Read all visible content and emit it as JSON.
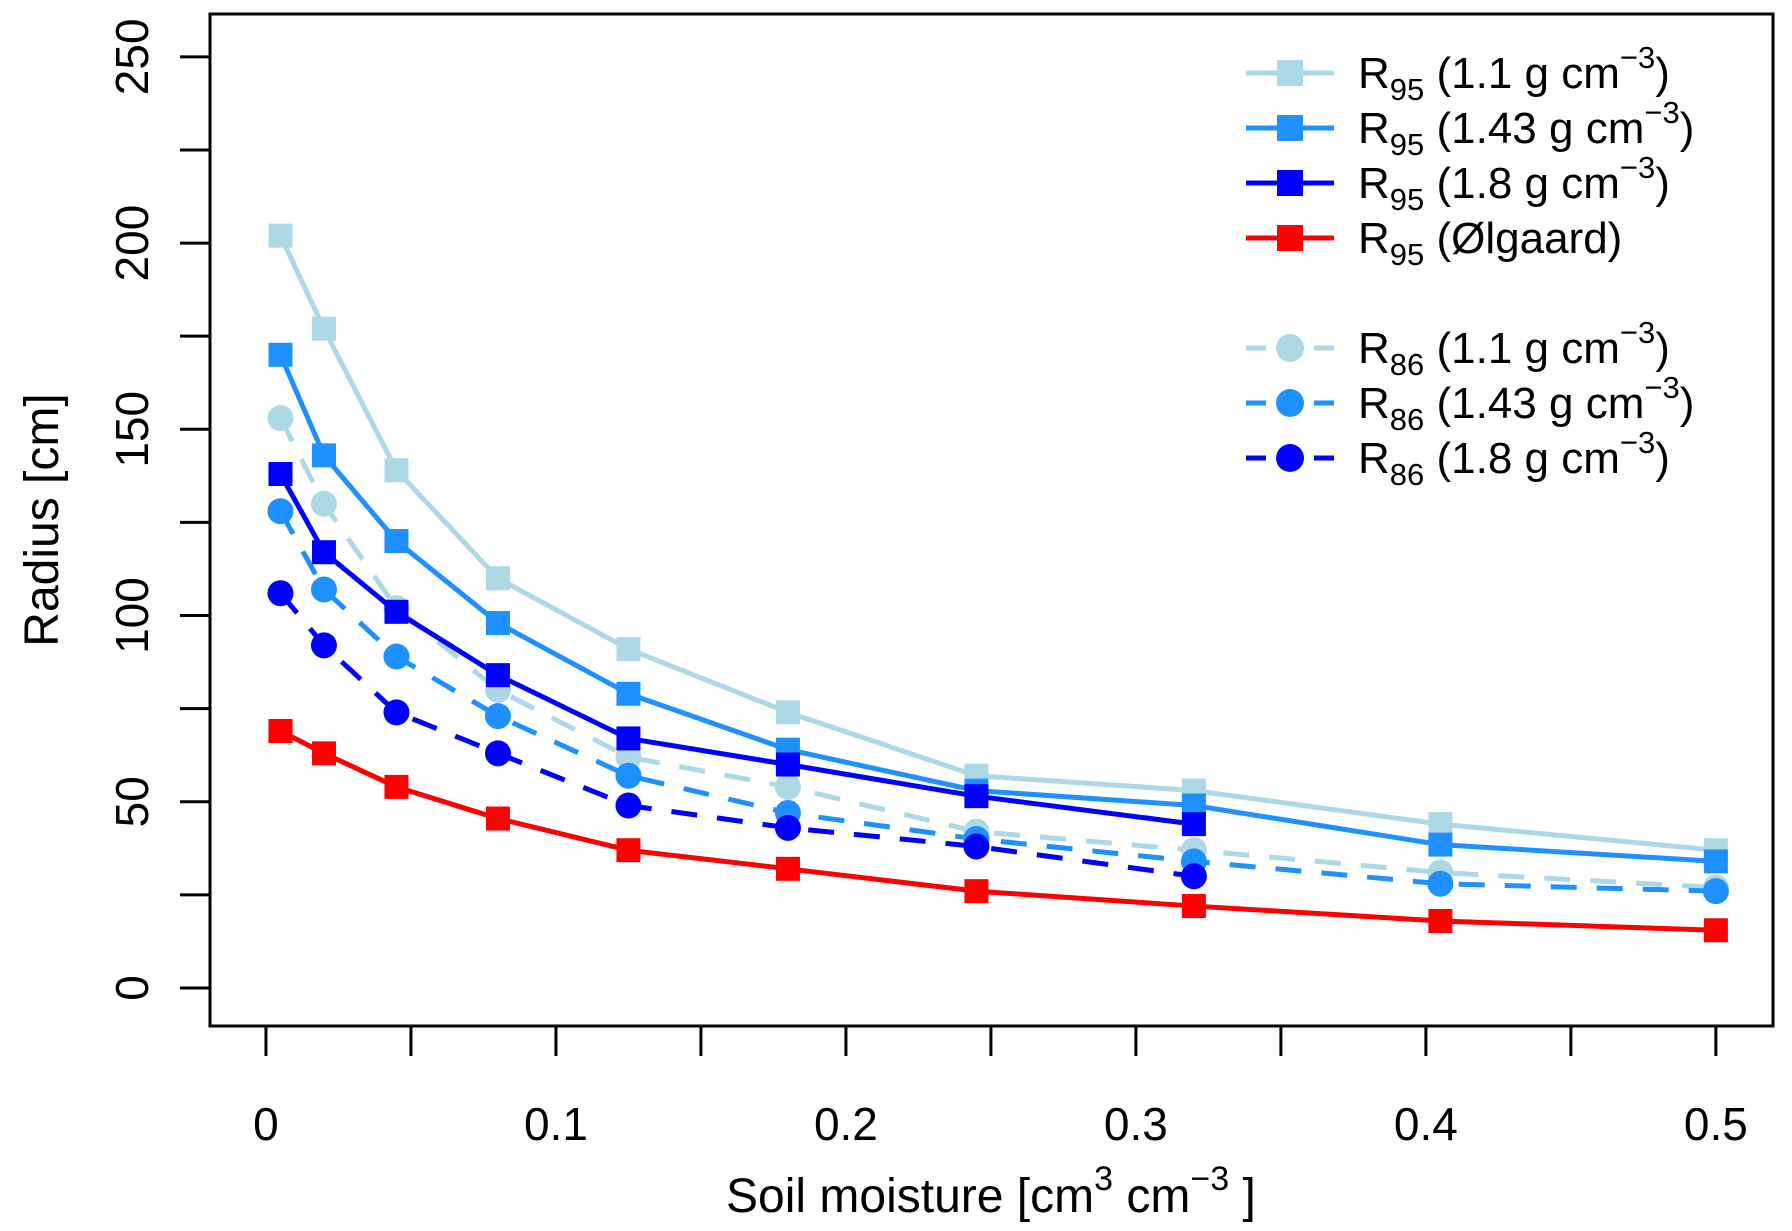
{
  "figure": {
    "background": "#ffffff",
    "axis_color": "#000000"
  },
  "chart_data": {
    "type": "line",
    "title": "",
    "xlabel": "Soil moisture [cm3 cm−3 ]",
    "xlabel_parts": [
      {
        "t": "Soil moisture [cm"
      },
      {
        "t": "3",
        "sup": true
      },
      {
        "t": " cm"
      },
      {
        "t": "−3",
        "sup": true
      },
      {
        "t": " ]"
      }
    ],
    "ylabel": "Radius [cm]",
    "xlim": [
      -0.0193,
      0.5197
    ],
    "ylim": [
      -10.2,
      261.5
    ],
    "grid": false,
    "legend_position": "top-right-inside",
    "x_ticks": [
      {
        "v": 0.0,
        "label": "0"
      },
      {
        "v": 0.05,
        "label": ""
      },
      {
        "v": 0.1,
        "label": "0.1"
      },
      {
        "v": 0.15,
        "label": ""
      },
      {
        "v": 0.2,
        "label": "0.2"
      },
      {
        "v": 0.25,
        "label": ""
      },
      {
        "v": 0.3,
        "label": "0.3"
      },
      {
        "v": 0.35,
        "label": ""
      },
      {
        "v": 0.4,
        "label": "0.4"
      },
      {
        "v": 0.45,
        "label": ""
      },
      {
        "v": 0.5,
        "label": "0.5"
      }
    ],
    "y_ticks": [
      {
        "v": 0,
        "label": "0"
      },
      {
        "v": 25,
        "label": ""
      },
      {
        "v": 50,
        "label": "50"
      },
      {
        "v": 75,
        "label": ""
      },
      {
        "v": 100,
        "label": "100"
      },
      {
        "v": 125,
        "label": ""
      },
      {
        "v": 150,
        "label": "150"
      },
      {
        "v": 175,
        "label": ""
      },
      {
        "v": 200,
        "label": "200"
      },
      {
        "v": 225,
        "label": ""
      },
      {
        "v": 250,
        "label": "250"
      }
    ],
    "x": [
      0.005,
      0.02,
      0.045,
      0.08,
      0.125,
      0.18,
      0.245,
      0.32,
      0.405,
      0.5
    ],
    "series": [
      {
        "id": "R95-1.1",
        "label": "R95 (1.1 g cm−3)",
        "label_parts": [
          {
            "t": "R"
          },
          {
            "t": "95",
            "sub": true
          },
          {
            "t": " (1.1 g cm"
          },
          {
            "t": "−3",
            "sup": true
          },
          {
            "t": ")"
          }
        ],
        "color": "#ADD8E6",
        "marker": "square",
        "line": "solid",
        "draw_order": 3,
        "values": [
          202,
          177,
          139,
          110,
          91,
          74,
          57,
          53,
          44,
          37
        ]
      },
      {
        "id": "R95-1.43",
        "label": "R95 (1.43 g cm−3)",
        "label_parts": [
          {
            "t": "R"
          },
          {
            "t": "95",
            "sub": true
          },
          {
            "t": " (1.43 g cm"
          },
          {
            "t": "−3",
            "sup": true
          },
          {
            "t": ")"
          }
        ],
        "color": "#1E90FF",
        "marker": "square",
        "line": "solid",
        "draw_order": 4,
        "values": [
          170,
          143,
          120,
          98,
          79,
          64,
          53,
          49,
          38.5,
          34
        ]
      },
      {
        "id": "R95-1.8",
        "label": "R95 (1.8 g cm−3)",
        "label_parts": [
          {
            "t": "R"
          },
          {
            "t": "95",
            "sub": true
          },
          {
            "t": " (1.8 g cm"
          },
          {
            "t": "−3",
            "sup": true
          },
          {
            "t": ")"
          }
        ],
        "color": "#0000FF",
        "marker": "square",
        "line": "solid",
        "draw_order": 5,
        "values": [
          138,
          117,
          101,
          84,
          67,
          60,
          51.5,
          44
        ]
      },
      {
        "id": "R95-Olgaard",
        "label": "R95 (Ølgaard)",
        "label_parts": [
          {
            "t": "R"
          },
          {
            "t": "95",
            "sub": true
          },
          {
            "t": " (Ølgaard)"
          }
        ],
        "color": "#FF0000",
        "marker": "square",
        "line": "solid",
        "draw_order": 6,
        "values": [
          69,
          63,
          54,
          45.5,
          37,
          32,
          26,
          22,
          18,
          15.5
        ]
      },
      {
        "id": "R86-1.1",
        "label": "R86 (1.1 g cm−3)",
        "label_parts": [
          {
            "t": "R"
          },
          {
            "t": "86",
            "sub": true
          },
          {
            "t": " (1.1 g cm"
          },
          {
            "t": "−3",
            "sup": true
          },
          {
            "t": ")"
          }
        ],
        "color": "#ADD8E6",
        "marker": "circle",
        "line": "dashed",
        "draw_order": 0,
        "values": [
          153,
          130,
          102,
          80,
          62,
          54,
          42,
          37,
          31,
          27
        ]
      },
      {
        "id": "R86-1.43",
        "label": "R86 (1.43 g cm−3)",
        "label_parts": [
          {
            "t": "R"
          },
          {
            "t": "86",
            "sub": true
          },
          {
            "t": " (1.43 g cm"
          },
          {
            "t": "−3",
            "sup": true
          },
          {
            "t": ")"
          }
        ],
        "color": "#1E90FF",
        "marker": "circle",
        "line": "dashed",
        "draw_order": 1,
        "values": [
          128,
          107,
          89,
          73,
          57,
          47,
          40,
          34,
          28,
          26
        ]
      },
      {
        "id": "R86-1.8",
        "label": "R86 (1.8 g cm−3)",
        "label_parts": [
          {
            "t": "R"
          },
          {
            "t": "86",
            "sub": true
          },
          {
            "t": " (1.8 g cm"
          },
          {
            "t": "−3",
            "sup": true
          },
          {
            "t": ")"
          }
        ],
        "color": "#0000FF",
        "marker": "circle",
        "line": "dashed",
        "draw_order": 2,
        "values": [
          106,
          92,
          74,
          63,
          49,
          43,
          38,
          30
        ]
      }
    ]
  }
}
